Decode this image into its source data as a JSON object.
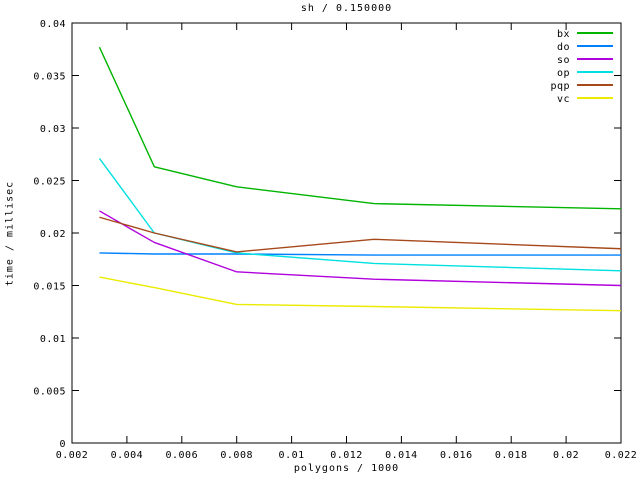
{
  "background": "#ffffff",
  "frame_color": "#000000",
  "chart_data": {
    "type": "line",
    "title": "sh / 0.150000",
    "xlabel": "polygons / 1000",
    "ylabel": "time / millisec",
    "xlim": [
      0.002,
      0.022
    ],
    "ylim": [
      0,
      0.04
    ],
    "grid": false,
    "legend_position": "inside top-right, no border",
    "xticks": [
      0.002,
      0.004,
      0.006,
      0.008,
      0.01,
      0.012,
      0.014,
      0.016,
      0.018,
      0.02,
      0.022
    ],
    "xtick_labels": [
      "0.002",
      "0.004",
      "0.006",
      "0.008",
      "0.01",
      "0.012",
      "0.014",
      "0.016",
      "0.018",
      "0.02",
      "0.022"
    ],
    "yticks": [
      0,
      0.005,
      0.01,
      0.015,
      0.02,
      0.025,
      0.03,
      0.035,
      0.04
    ],
    "ytick_labels": [
      "0",
      "0.005",
      "0.01",
      "0.015",
      "0.02",
      "0.025",
      "0.03",
      "0.035",
      "0.04"
    ],
    "x": [
      0.003,
      0.005,
      0.008,
      0.013,
      0.022
    ],
    "series": [
      {
        "name": "bx",
        "color": "#00b400",
        "values": [
          0.0377,
          0.0263,
          0.0244,
          0.0228,
          0.0223
        ]
      },
      {
        "name": "do",
        "color": "#0080ff",
        "values": [
          0.0181,
          0.018,
          0.018,
          0.0179,
          0.0179
        ]
      },
      {
        "name": "so",
        "color": "#b000dc",
        "values": [
          0.0221,
          0.0191,
          0.0163,
          0.0156,
          0.015
        ]
      },
      {
        "name": "op",
        "color": "#00e0e0",
        "values": [
          0.0271,
          0.02,
          0.0181,
          0.0171,
          0.0164
        ]
      },
      {
        "name": "pqp",
        "color": "#a6491a",
        "values": [
          0.0215,
          0.02,
          0.0182,
          0.0194,
          0.0185
        ]
      },
      {
        "name": "vc",
        "color": "#ebeb00",
        "values": [
          0.0158,
          0.0148,
          0.0132,
          0.013,
          0.0126
        ]
      }
    ]
  }
}
